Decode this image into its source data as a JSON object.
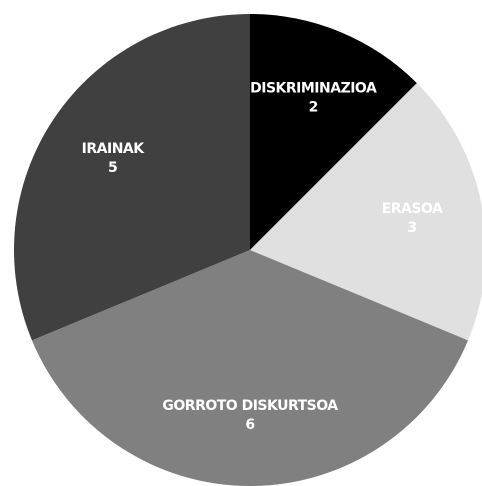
{
  "chart_data": {
    "type": "pie",
    "categories": [
      "DISKRIMINAZIOA",
      "ERASOA",
      "GORROTO DISKURTSOA",
      "IRAINAK"
    ],
    "values": [
      2,
      3,
      6,
      5
    ],
    "colors": [
      "#000000",
      "#e0e0e0",
      "#808080",
      "#404040"
    ]
  }
}
